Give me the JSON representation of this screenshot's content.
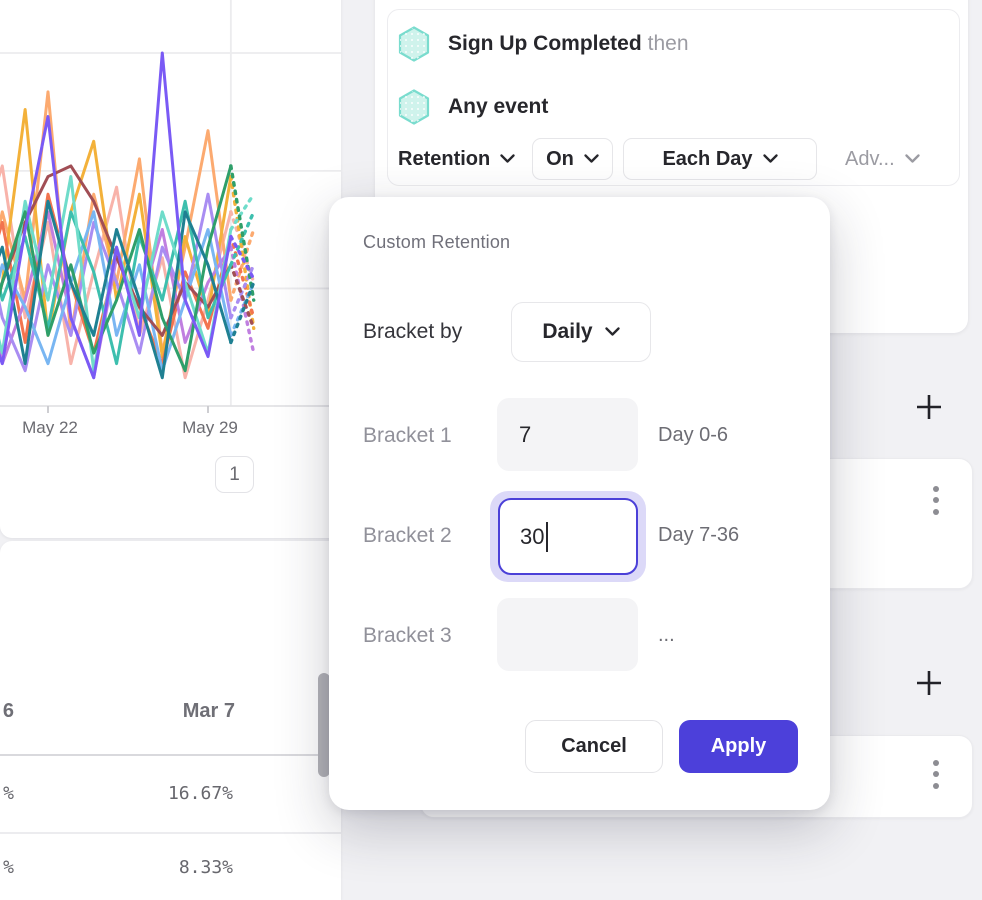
{
  "colors": {
    "accent": "#4c40da",
    "focus_ring": "#dcd9f8",
    "hexagon_fill": "#cff3ec",
    "hexagon_border": "#7adcce",
    "text_dark": "#27272c",
    "text_muted": "#9b9ba2",
    "grid": "#ececee"
  },
  "chart_data": {
    "type": "line",
    "x_ticks": [
      "May 22",
      "May 29"
    ],
    "ylim": [
      0,
      100
    ],
    "grid": true,
    "last_segment_style": "dotted",
    "series": [
      {
        "name": "salmon",
        "color": "#f8b3aa",
        "values": [
          48,
          68,
          25,
          52,
          12,
          38,
          62,
          20,
          42,
          8,
          30,
          55,
          35
        ]
      },
      {
        "name": "orange",
        "color": "#fcaa70",
        "values": [
          25,
          55,
          30,
          89,
          20,
          60,
          35,
          70,
          15,
          45,
          78,
          30,
          50
        ]
      },
      {
        "name": "amber",
        "color": "#f3b13a",
        "values": [
          10,
          35,
          84,
          20,
          55,
          75,
          30,
          60,
          14,
          48,
          26,
          65,
          22
        ]
      },
      {
        "name": "tomato",
        "color": "#f2744f",
        "values": [
          30,
          52,
          18,
          60,
          35,
          15,
          42,
          28,
          12,
          38,
          22,
          48,
          25
        ]
      },
      {
        "name": "orchid",
        "color": "#c07fe0",
        "values": [
          45,
          12,
          30,
          55,
          25,
          8,
          42,
          28,
          50,
          18,
          35,
          45,
          15
        ]
      },
      {
        "name": "light-purple",
        "color": "#a98df2",
        "values": [
          55,
          25,
          10,
          40,
          20,
          52,
          35,
          15,
          45,
          30,
          60,
          25,
          40
        ]
      },
      {
        "name": "blue",
        "color": "#79b6f2",
        "values": [
          15,
          40,
          28,
          12,
          35,
          55,
          20,
          40,
          10,
          30,
          50,
          20,
          35
        ]
      },
      {
        "name": "maroon",
        "color": "#a14e55",
        "values": [
          20,
          35,
          52,
          65,
          68,
          58,
          42,
          28,
          20,
          35,
          28,
          40,
          22
        ]
      },
      {
        "name": "teal",
        "color": "#3dbfae",
        "values": [
          60,
          30,
          48,
          22,
          55,
          38,
          12,
          48,
          30,
          58,
          25,
          40,
          55
        ]
      },
      {
        "name": "light-teal",
        "color": "#6fdcca",
        "values": [
          40,
          15,
          58,
          30,
          65,
          10,
          45,
          25,
          55,
          35,
          15,
          50,
          60
        ]
      },
      {
        "name": "green",
        "color": "#2f9f6a",
        "values": [
          10,
          35,
          55,
          20,
          40,
          15,
          30,
          50,
          25,
          10,
          45,
          68,
          30
        ]
      },
      {
        "name": "dark-teal",
        "color": "#1f8092",
        "values": [
          28,
          45,
          12,
          58,
          35,
          20,
          50,
          30,
          8,
          55,
          40,
          18,
          35
        ]
      },
      {
        "name": "purple",
        "color": "#7a5af5",
        "values": [
          30,
          12,
          50,
          82,
          25,
          8,
          45,
          20,
          100,
          30,
          14,
          48,
          36
        ]
      }
    ]
  },
  "chart_card": {
    "pagination_label": "1"
  },
  "results_table": {
    "clipped_left_column": {
      "header": "6",
      "values": [
        "%",
        "%"
      ]
    },
    "columns": [
      {
        "header": "Mar 7",
        "values": [
          "16.67%",
          "8.33%"
        ]
      }
    ]
  },
  "builder_card": {
    "rows": [
      {
        "icon": "hexagon-event-icon",
        "label": "Sign Up Completed",
        "suffix": "then"
      },
      {
        "icon": "hexagon-event-icon",
        "label": "Any event",
        "suffix": ""
      }
    ],
    "controls": [
      {
        "label": "Retention"
      },
      {
        "label": "On"
      },
      {
        "label": "Each Day"
      },
      {
        "label": "Adv..."
      }
    ]
  },
  "right_rail": {
    "add_label": "+",
    "kebab_icon": "kebab-menu-icon"
  },
  "modal": {
    "title": "Custom Retention",
    "bracket_by_label": "Bracket by",
    "bracket_by_value": "Daily",
    "rows": [
      {
        "label": "Bracket 1",
        "value": "7",
        "hint": "Day 0-6",
        "state": "filled"
      },
      {
        "label": "Bracket 2",
        "value": "30",
        "hint": "Day 7-36",
        "state": "focused"
      },
      {
        "label": "Bracket 3",
        "value": "",
        "hint": "...",
        "state": "empty"
      }
    ],
    "cancel_label": "Cancel",
    "apply_label": "Apply"
  }
}
